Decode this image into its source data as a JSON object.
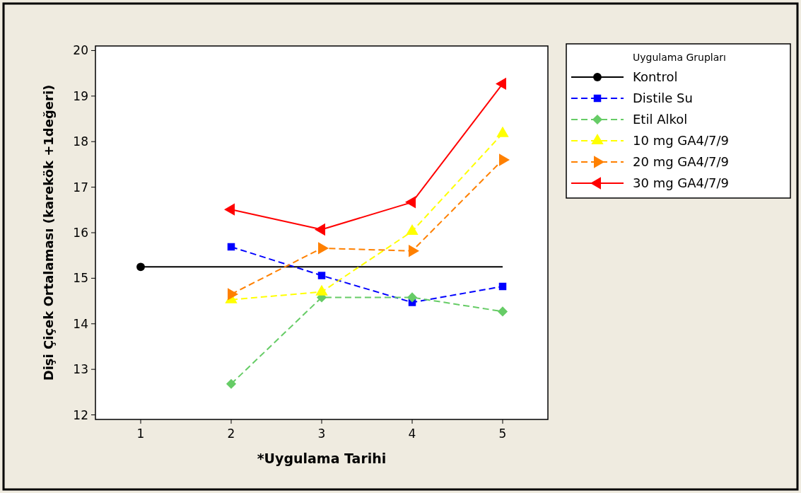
{
  "chart_data": {
    "type": "line",
    "xlabel": "*Uygulama Tarihi",
    "ylabel": "Dişi Çiçek Ortalaması (karekök +1değeri)",
    "legend_title": "Uygulama Grupları",
    "legend": "right",
    "xlim": [
      0.5,
      5.5
    ],
    "xticks": [
      1,
      2,
      3,
      4,
      5
    ],
    "ylim": [
      11.9,
      20.1
    ],
    "yticks": [
      12,
      13,
      14,
      15,
      16,
      17,
      18,
      19,
      20
    ],
    "ref_lines": [
      {
        "axis": "y",
        "value": 15.25,
        "color": "#000000",
        "line_style": "solid"
      }
    ],
    "series": [
      {
        "name": "Kontrol",
        "color": "#000000",
        "x": [
          1
        ],
        "values": [
          15.25
        ],
        "marker": "circle",
        "line_style": "solid"
      },
      {
        "name": "Distile Su",
        "color": "#0000ff",
        "x": [
          2,
          3,
          4,
          5
        ],
        "values": [
          15.69,
          15.06,
          14.47,
          14.82
        ],
        "marker": "square",
        "line_style": "dashed"
      },
      {
        "name": "Etil Alkol",
        "color": "#66cc66",
        "x": [
          2,
          3,
          4,
          5
        ],
        "values": [
          12.68,
          14.58,
          14.58,
          14.27
        ],
        "marker": "diamond",
        "line_style": "dashed"
      },
      {
        "name": "10 mg GA4/7/9",
        "color": "#ffff00",
        "x": [
          2,
          3,
          4,
          5
        ],
        "values": [
          14.53,
          14.7,
          16.03,
          18.18
        ],
        "marker": "triangle",
        "line_style": "dashed"
      },
      {
        "name": "20 mg GA4/7/9",
        "color": "#ff8000",
        "x": [
          2,
          3,
          4,
          5
        ],
        "values": [
          14.65,
          15.66,
          15.6,
          17.6
        ],
        "marker": "triangle-right",
        "line_style": "dashed"
      },
      {
        "name": "30 mg GA4/7/9",
        "color": "#ff0000",
        "x": [
          2,
          3,
          4,
          5
        ],
        "values": [
          16.51,
          16.07,
          16.67,
          19.27
        ],
        "marker": "triangle-left",
        "line_style": "solid"
      }
    ]
  }
}
